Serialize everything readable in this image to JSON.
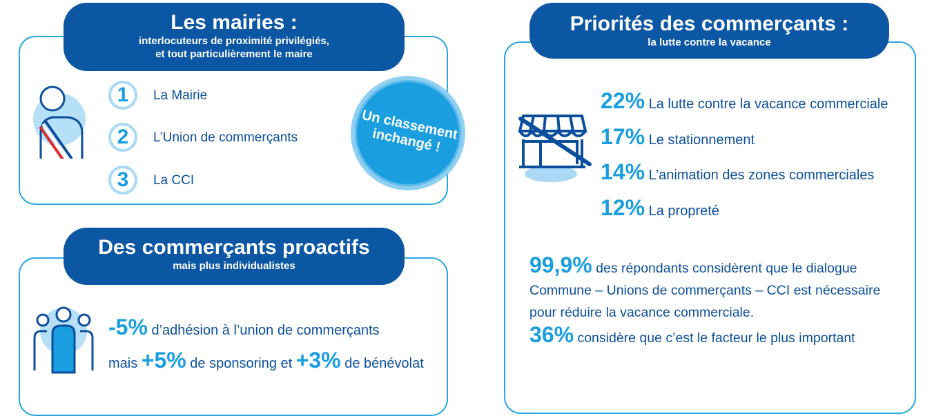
{
  "mairies": {
    "title": "Les mairies :",
    "subtitle_1": "interlocuteurs de proximité privilégiés,",
    "subtitle_2": "et tout particulièrement le maire",
    "ranking": [
      {
        "rank": "1",
        "label": "La Mairie"
      },
      {
        "rank": "2",
        "label": "L’Union de commerçants"
      },
      {
        "rank": "3",
        "label": "La CCI"
      }
    ],
    "badge_1": "Un classement",
    "badge_2": "inchangé !",
    "icon": "mayor-sash-icon"
  },
  "proactifs": {
    "title": "Des commerçants proactifs",
    "subtitle": "mais plus individualistes",
    "icon": "group-people-icon",
    "line1_pct": "-5%",
    "line1_text": " d’adhésion à l’union de commerçants",
    "line2_a": "mais ",
    "line2_pct1": "+5%",
    "line2_b": " de sponsoring et ",
    "line2_pct2": "+3%",
    "line2_c": " de bénévolat"
  },
  "priorites": {
    "title": "Priorités des commerçants :",
    "subtitle": "la lutte contre la vacance",
    "icon": "closed-shop-icon",
    "items": [
      {
        "pct": "22%",
        "label": "La lutte contre la vacance commerciale"
      },
      {
        "pct": "17%",
        "label": "Le stationnement"
      },
      {
        "pct": "14%",
        "label": "L’animation des zones commerciales"
      },
      {
        "pct": "12%",
        "label": "La propreté"
      }
    ],
    "stat1_pct": "99,9%",
    "stat1_l1": " des répondants considèrent que le dialogue",
    "stat1_l2": "Commune – Unions de commerçants – CCI est nécessaire",
    "stat1_l3": "pour réduire la vacance commerciale.",
    "stat2_pct": "36%",
    "stat2_text": " considère que c’est le facteur le plus important"
  },
  "colors": {
    "dark_blue": "#0b57a4",
    "accent": "#1a9ee0",
    "border": "#2aa7df"
  }
}
